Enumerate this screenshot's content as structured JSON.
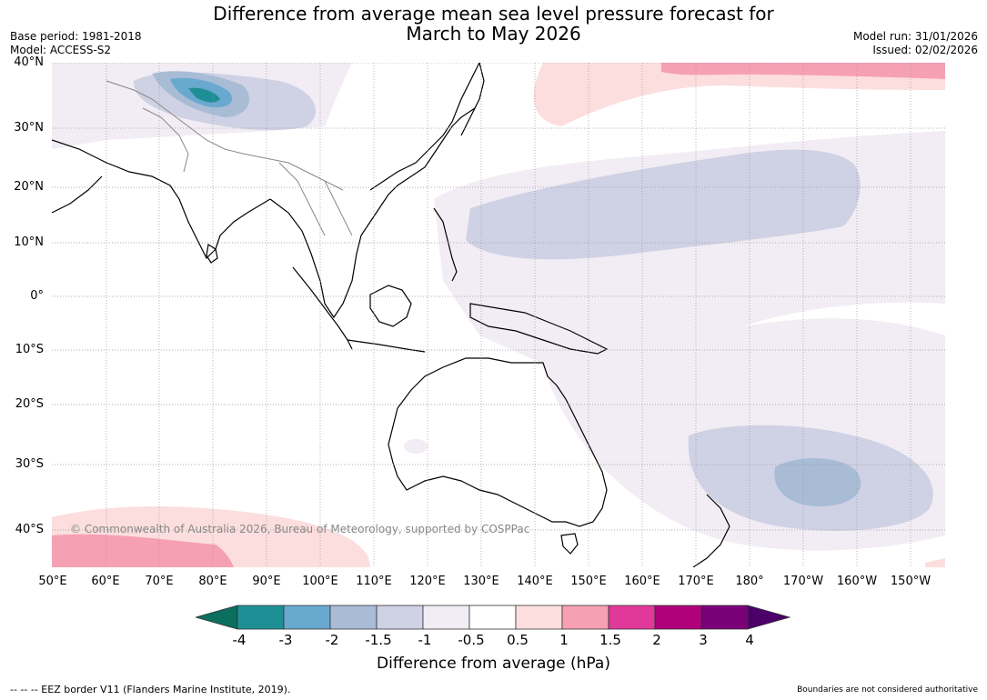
{
  "title": {
    "line1": "Difference from average mean sea level pressure forecast for",
    "line2": "March to May 2026"
  },
  "meta_left": {
    "base_period": "Base period: 1981-2018",
    "model": "Model: ACCESS-S2"
  },
  "meta_right": {
    "model_run": "Model run: 31/01/2026",
    "issued": "Issued: 02/02/2026"
  },
  "copyright": "© Commonwealth of Australia 2026, Bureau of Meteorology, supported by COSPPac",
  "lat_labels": [
    "40°N",
    "30°N",
    "20°N",
    "10°N",
    "0°",
    "10°S",
    "20°S",
    "30°S",
    "40°S"
  ],
  "lon_labels": [
    "50°E",
    "60°E",
    "70°E",
    "80°E",
    "90°E",
    "100°E",
    "110°E",
    "120°E",
    "130°E",
    "140°E",
    "150°E",
    "160°E",
    "170°E",
    "180°",
    "170°W",
    "160°W",
    "150°W"
  ],
  "colorbar": {
    "ticks": [
      "-4",
      "-3",
      "-2",
      "-1.5",
      "-1",
      "-0.5",
      "0.5",
      "1",
      "1.5",
      "2",
      "3",
      "4"
    ],
    "colors": [
      "#0c6e5e",
      "#1f8f96",
      "#6aa9cf",
      "#a8bcd6",
      "#cfd1e4",
      "#f2ecf4",
      "#ffffff",
      "#fcdede",
      "#f6a0b4",
      "#e0399a",
      "#b0007a",
      "#7a0078",
      "#4c006a"
    ],
    "title": "Difference from average (hPa)"
  },
  "footer_left": "--  --  -- EEZ border V11 (Flanders Marine Institute, 2019).",
  "footer_right": "Boundaries are not considered authoritative"
}
